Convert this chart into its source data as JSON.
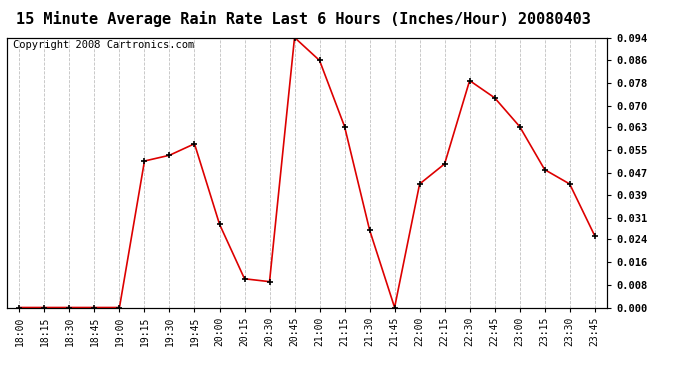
{
  "title": "15 Minute Average Rain Rate Last 6 Hours (Inches/Hour) 20080403",
  "copyright": "Copyright 2008 Cartronics.com",
  "times": [
    "18:00",
    "18:15",
    "18:30",
    "18:45",
    "19:00",
    "19:15",
    "19:30",
    "19:45",
    "20:00",
    "20:15",
    "20:30",
    "20:45",
    "21:00",
    "21:15",
    "21:30",
    "21:45",
    "22:00",
    "22:15",
    "22:30",
    "22:45",
    "23:00",
    "23:15",
    "23:30",
    "23:45"
  ],
  "values": [
    0.0,
    0.0,
    0.0,
    0.0,
    0.0,
    0.051,
    0.053,
    0.057,
    0.029,
    0.01,
    0.009,
    0.094,
    0.086,
    0.063,
    0.027,
    0.0,
    0.043,
    0.05,
    0.079,
    0.073,
    0.063,
    0.048,
    0.043,
    0.025
  ],
  "line_color": "#dd0000",
  "marker_color": "#000000",
  "bg_color": "#ffffff",
  "grid_color": "#c0c0c0",
  "ylim_max": 0.094,
  "yticks": [
    0.0,
    0.008,
    0.016,
    0.024,
    0.031,
    0.039,
    0.047,
    0.055,
    0.063,
    0.07,
    0.078,
    0.086,
    0.094
  ],
  "title_fontsize": 11,
  "copyright_fontsize": 7.5
}
